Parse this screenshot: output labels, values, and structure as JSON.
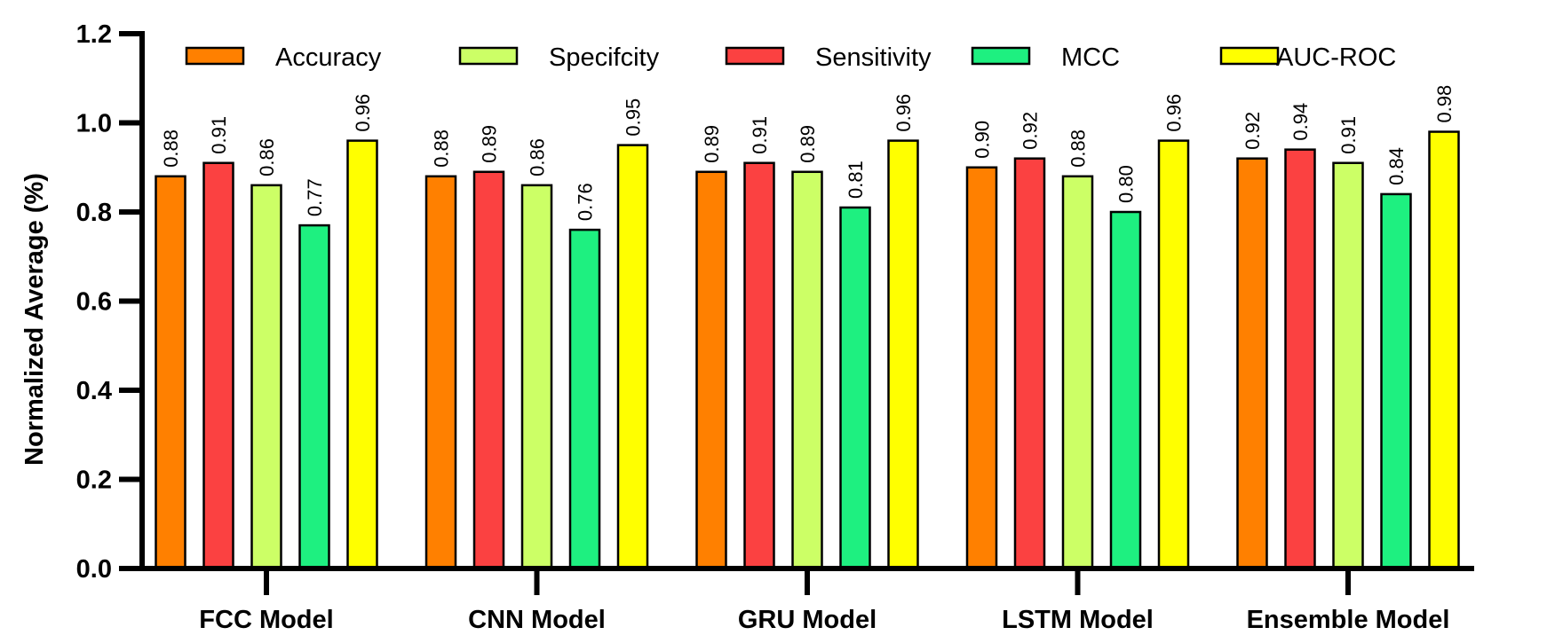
{
  "chart_data": {
    "type": "bar",
    "categories": [
      "FCC Model",
      "CNN Model",
      "GRU Model",
      "LSTM Model",
      "Ensemble Model"
    ],
    "series": [
      {
        "name": "Accuracy",
        "color": "#ff8000",
        "values": [
          0.88,
          0.88,
          0.89,
          0.9,
          0.92
        ],
        "labels": [
          "0.88",
          "0.88",
          "0.89",
          "0.90",
          "0.92"
        ]
      },
      {
        "name": "Sensitivity",
        "color": "#fb4141",
        "values": [
          0.91,
          0.89,
          0.91,
          0.92,
          0.94
        ],
        "labels": [
          "0.91",
          "0.89",
          "0.91",
          "0.92",
          "0.94"
        ]
      },
      {
        "name": "Specifcity",
        "color": "#ccff66",
        "values": [
          0.86,
          0.86,
          0.89,
          0.88,
          0.91
        ],
        "labels": [
          "0.86",
          "0.86",
          "0.89",
          "0.88",
          "0.91"
        ]
      },
      {
        "name": "MCC",
        "color": "#1ef080",
        "values": [
          0.77,
          0.76,
          0.81,
          0.8,
          0.84
        ],
        "labels": [
          "0.77",
          "0.76",
          "0.81",
          "0.80",
          "0.84"
        ]
      },
      {
        "name": "AUC-ROC",
        "color": "#ffff00",
        "values": [
          0.96,
          0.95,
          0.96,
          0.96,
          0.98
        ],
        "labels": [
          "0.96",
          "0.95",
          "0.96",
          "0.96",
          "0.98"
        ]
      }
    ],
    "legend_order": [
      "Accuracy",
      "Specifcity",
      "Sensitivity",
      "MCC",
      "AUC-ROC"
    ],
    "legend_position": "top",
    "ylabel": "Normalized Average (%)",
    "xlabel": "",
    "title": "",
    "ylim": [
      0,
      1.2
    ],
    "yticks": [
      0.0,
      0.2,
      0.4,
      0.6,
      0.8,
      1.0,
      1.2
    ],
    "ytick_labels": [
      "0.0",
      "0.2",
      "0.4",
      "0.6",
      "0.8",
      "1.0",
      "1.2"
    ],
    "grid": false
  }
}
